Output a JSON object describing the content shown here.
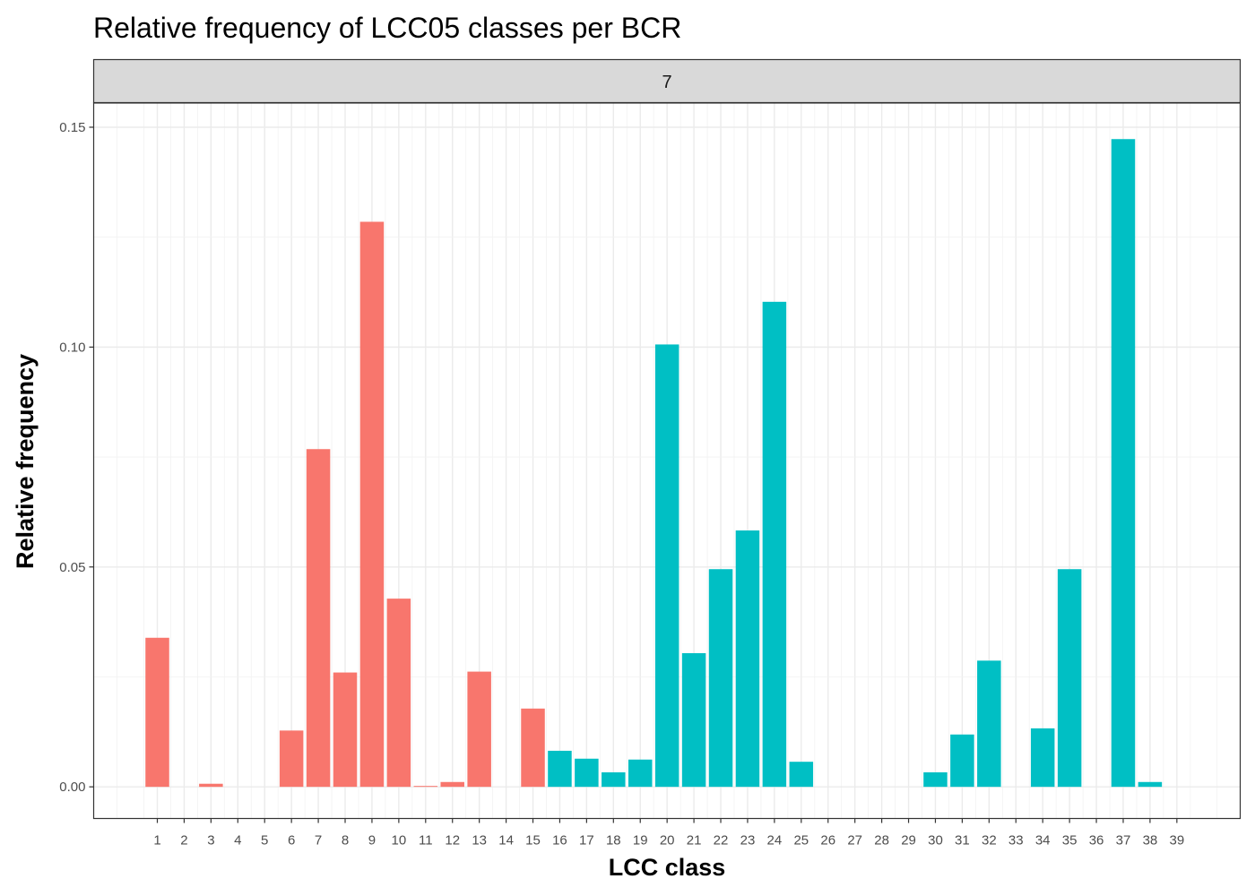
{
  "chart_data": {
    "type": "bar",
    "title": "Relative frequency of LCC05 classes per BCR",
    "xlabel": "LCC class",
    "ylabel": "Relative frequency",
    "facet_label": "7",
    "ylim": [
      -0.0072,
      0.1555
    ],
    "yticks": [
      0.0,
      0.05,
      0.1,
      0.15
    ],
    "ytick_labels": [
      "0.00",
      "0.05",
      "0.10",
      "0.15"
    ],
    "grid": true,
    "legend": "none",
    "categories": [
      "1",
      "2",
      "3",
      "4",
      "5",
      "6",
      "7",
      "8",
      "9",
      "10",
      "11",
      "12",
      "13",
      "14",
      "15",
      "16",
      "17",
      "18",
      "19",
      "20",
      "21",
      "22",
      "23",
      "24",
      "25",
      "26",
      "27",
      "28",
      "29",
      "30",
      "31",
      "32",
      "33",
      "34",
      "35",
      "36",
      "37",
      "38",
      "39"
    ],
    "values": [
      0.0339,
      0,
      0.0007,
      0,
      0,
      0.0128,
      0.0768,
      0.026,
      0.1285,
      0.0428,
      0.0002,
      0.0011,
      0.0262,
      0,
      0.0178,
      0.0082,
      0.0064,
      0.0033,
      0.0062,
      0.1006,
      0.0304,
      0.0495,
      0.0583,
      0.1103,
      0.0057,
      0,
      0,
      0,
      0,
      0.0033,
      0.0119,
      0.0287,
      0,
      0.0133,
      0.0495,
      0,
      0.1473,
      0.0011,
      0
    ],
    "series_colors": [
      "#F8766D",
      "#F8766D",
      "#F8766D",
      "#F8766D",
      "#F8766D",
      "#F8766D",
      "#F8766D",
      "#F8766D",
      "#F8766D",
      "#F8766D",
      "#F8766D",
      "#F8766D",
      "#F8766D",
      "#F8766D",
      "#F8766D",
      "#00BFC4",
      "#00BFC4",
      "#00BFC4",
      "#00BFC4",
      "#00BFC4",
      "#00BFC4",
      "#00BFC4",
      "#00BFC4",
      "#00BFC4",
      "#00BFC4",
      "#00BFC4",
      "#00BFC4",
      "#00BFC4",
      "#00BFC4",
      "#00BFC4",
      "#00BFC4",
      "#00BFC4",
      "#00BFC4",
      "#00BFC4",
      "#00BFC4",
      "#00BFC4",
      "#00BFC4",
      "#00BFC4",
      "#00BFC4"
    ],
    "x_minor_grid_count": 42
  }
}
